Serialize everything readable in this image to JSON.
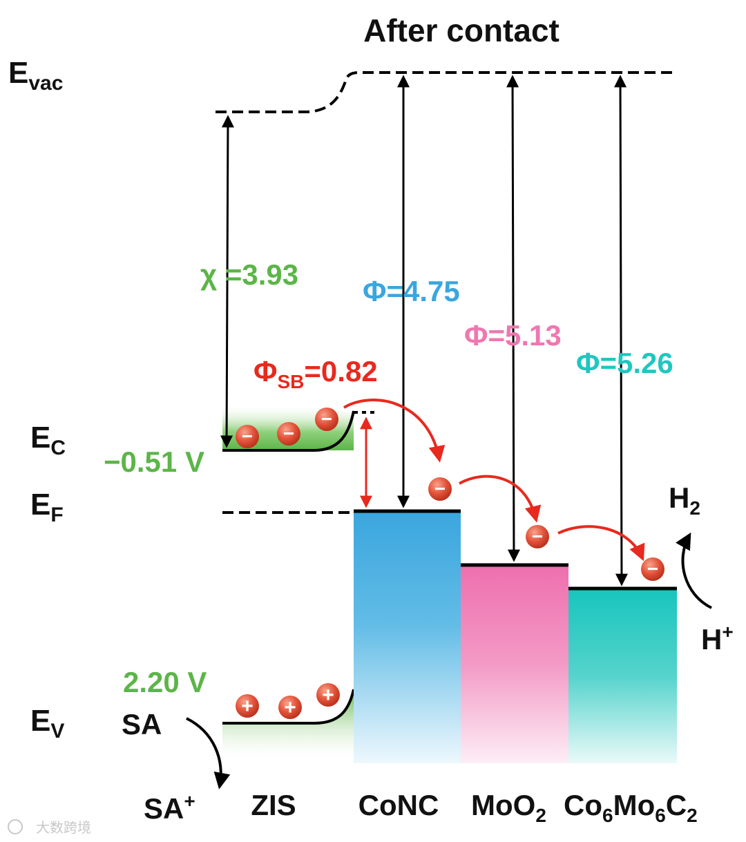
{
  "title": "After contact",
  "levels": {
    "evac": {
      "main": "E",
      "sub": "vac"
    },
    "ec": {
      "main": "E",
      "sub": "C"
    },
    "ef": {
      "main": "E",
      "sub": "F"
    },
    "ev": {
      "main": "E",
      "sub": "V"
    }
  },
  "potentials": {
    "cb": "−0.51 V",
    "vb": "2.20 V"
  },
  "params": {
    "chi": "χ =3.93",
    "phi_conc": "Φ=4.75",
    "phi_moo2": "Φ=5.13",
    "phi_co6mo6c2": "Φ=5.26",
    "phi_sb": {
      "main": "Φ",
      "sub": "SB",
      "value": "=0.82"
    }
  },
  "materials": {
    "zis": "ZIS",
    "conc": "CoNC",
    "moo2": {
      "main": "MoO",
      "sub": "2"
    },
    "co6mo6c2": {
      "p1": "Co",
      "s1": "6",
      "p2": "Mo",
      "s2": "6",
      "p3": "C",
      "s3": "2"
    }
  },
  "reactions": {
    "sa": "SA",
    "sa_plus": {
      "main": "SA",
      "sup": "+"
    },
    "h_plus": {
      "main": "H",
      "sup": "+"
    },
    "h2": {
      "main": "H",
      "sub": "2"
    }
  },
  "charges": {
    "electron": "−",
    "hole": "+"
  },
  "watermark": "大数跨境",
  "colors": {
    "green": "#5cb548",
    "blue": "#3aa6de",
    "pink": "#ee78b0",
    "teal": "#1ec7c0",
    "red": "#e8291e",
    "orange_ball": "#e4533a"
  }
}
